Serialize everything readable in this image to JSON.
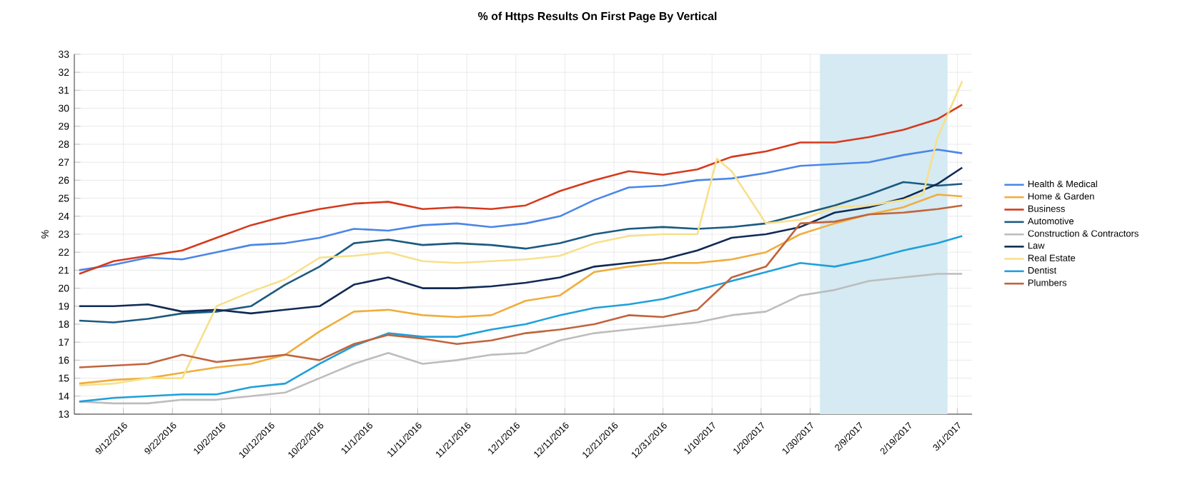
{
  "chart_data": {
    "type": "line",
    "title": "% of Https Results On First Page By Vertical",
    "ylabel": "%",
    "x": [
      "2016-09-03",
      "2016-09-10",
      "2016-09-17",
      "2016-09-24",
      "2016-10-01",
      "2016-10-08",
      "2016-10-15",
      "2016-10-22",
      "2016-10-29",
      "2016-11-05",
      "2016-11-12",
      "2016-11-19",
      "2016-11-26",
      "2016-12-03",
      "2016-12-10",
      "2016-12-17",
      "2016-12-24",
      "2016-12-31",
      "2017-01-07",
      "2017-01-14",
      "2017-01-21",
      "2017-01-28",
      "2017-02-04",
      "2017-02-11",
      "2017-02-18",
      "2017-02-25",
      "2017-03-02"
    ],
    "series": [
      {
        "name": "Health & Medical",
        "color": "#4a86e8",
        "values": [
          21.0,
          21.3,
          21.7,
          21.6,
          22.0,
          22.4,
          22.5,
          22.8,
          23.3,
          23.2,
          23.5,
          23.6,
          23.4,
          23.6,
          24.0,
          24.9,
          25.6,
          25.7,
          26.0,
          26.1,
          26.4,
          26.8,
          26.9,
          27.0,
          27.4,
          27.7,
          27.5
        ]
      },
      {
        "name": "Home & Garden",
        "color": "#f0ad3c",
        "values": [
          14.7,
          14.9,
          15.0,
          15.3,
          15.6,
          15.8,
          16.3,
          17.6,
          18.7,
          18.8,
          18.5,
          18.4,
          18.5,
          19.3,
          19.6,
          20.9,
          21.2,
          21.4,
          21.4,
          21.6,
          22.0,
          23.0,
          23.6,
          24.1,
          24.5,
          25.2,
          25.1
        ]
      },
      {
        "name": "Business",
        "color": "#d63a1c",
        "values": [
          20.8,
          21.5,
          21.8,
          22.1,
          22.8,
          23.5,
          24.0,
          24.4,
          24.7,
          24.8,
          24.4,
          24.5,
          24.4,
          24.6,
          25.4,
          26.0,
          26.5,
          26.3,
          26.6,
          27.3,
          27.6,
          28.1,
          28.1,
          28.4,
          28.8,
          29.4,
          30.2
        ]
      },
      {
        "name": "Automotive",
        "color": "#1c5a80",
        "values": [
          18.2,
          18.1,
          18.3,
          18.6,
          18.7,
          19.0,
          20.2,
          21.2,
          22.5,
          22.7,
          22.4,
          22.5,
          22.4,
          22.2,
          22.5,
          23.0,
          23.3,
          23.4,
          23.3,
          23.4,
          23.6,
          24.1,
          24.6,
          25.2,
          25.9,
          25.7,
          25.8
        ]
      },
      {
        "name": "Construction & Contractors",
        "color": "#bdbdbd",
        "values": [
          13.7,
          13.6,
          13.6,
          13.8,
          13.8,
          14.0,
          14.2,
          15.0,
          15.8,
          16.4,
          15.8,
          16.0,
          16.3,
          16.4,
          17.1,
          17.5,
          17.7,
          17.9,
          18.1,
          18.5,
          18.7,
          19.6,
          19.9,
          20.4,
          20.6,
          20.8,
          20.8
        ]
      },
      {
        "name": "Law",
        "color": "#102a55",
        "values": [
          19.0,
          19.0,
          19.1,
          18.7,
          18.8,
          18.6,
          18.8,
          19.0,
          20.2,
          20.6,
          20.0,
          20.0,
          20.1,
          20.3,
          20.6,
          21.2,
          21.4,
          21.6,
          22.1,
          22.8,
          23.0,
          23.4,
          24.2,
          24.5,
          25.0,
          25.8,
          26.7
        ]
      },
      {
        "name": "Real Estate",
        "color": "#f7e08a",
        "x": [
          "2016-09-03",
          "2016-09-10",
          "2016-09-17",
          "2016-09-24",
          "2016-10-01",
          "2016-10-08",
          "2016-10-15",
          "2016-10-22",
          "2016-10-29",
          "2016-11-05",
          "2016-11-12",
          "2016-11-19",
          "2016-11-26",
          "2016-12-03",
          "2016-12-10",
          "2016-12-17",
          "2016-12-24",
          "2016-12-31",
          "2017-01-07",
          "2017-01-11",
          "2017-01-14",
          "2017-01-21",
          "2017-01-28",
          "2017-02-04",
          "2017-02-11",
          "2017-02-18",
          "2017-02-22",
          "2017-02-25",
          "2017-03-02"
        ],
        "values": [
          14.6,
          14.7,
          15.0,
          15.0,
          19.0,
          19.8,
          20.5,
          21.7,
          21.8,
          22.0,
          21.5,
          21.4,
          21.5,
          21.6,
          21.8,
          22.5,
          22.9,
          23.0,
          23.0,
          27.2,
          26.5,
          23.6,
          23.8,
          24.5,
          24.6,
          24.9,
          25.2,
          28.4,
          31.5
        ]
      },
      {
        "name": "Dentist",
        "color": "#1fa0dc",
        "values": [
          13.7,
          13.9,
          14.0,
          14.1,
          14.1,
          14.5,
          14.7,
          15.8,
          16.8,
          17.5,
          17.3,
          17.3,
          17.7,
          18.0,
          18.5,
          18.9,
          19.1,
          19.4,
          19.9,
          20.4,
          20.9,
          21.4,
          21.2,
          21.6,
          22.1,
          22.5,
          22.9
        ]
      },
      {
        "name": "Plumbers",
        "color": "#c0643c",
        "values": [
          15.6,
          15.7,
          15.8,
          16.3,
          15.9,
          16.1,
          16.3,
          16.0,
          16.9,
          17.4,
          17.2,
          16.9,
          17.1,
          17.5,
          17.7,
          18.0,
          18.5,
          18.4,
          18.8,
          20.6,
          21.2,
          23.6,
          23.7,
          24.1,
          24.2,
          24.4,
          24.6
        ]
      }
    ],
    "xlim": [
      "2016-09-02",
      "2017-03-04"
    ],
    "xticks": [
      {
        "value": "2016-09-12",
        "label": "9/12/2016"
      },
      {
        "value": "2016-09-22",
        "label": "9/22/2016"
      },
      {
        "value": "2016-10-02",
        "label": "10/2/2016"
      },
      {
        "value": "2016-10-12",
        "label": "10/12/2016"
      },
      {
        "value": "2016-10-22",
        "label": "10/22/2016"
      },
      {
        "value": "2016-11-01",
        "label": "11/1/2016"
      },
      {
        "value": "2016-11-11",
        "label": "11/11/2016"
      },
      {
        "value": "2016-11-21",
        "label": "11/21/2016"
      },
      {
        "value": "2016-12-01",
        "label": "12/1/2016"
      },
      {
        "value": "2016-12-11",
        "label": "12/11/2016"
      },
      {
        "value": "2016-12-21",
        "label": "12/21/2016"
      },
      {
        "value": "2016-12-31",
        "label": "12/31/2016"
      },
      {
        "value": "2017-01-10",
        "label": "1/10/2017"
      },
      {
        "value": "2017-01-20",
        "label": "1/20/2017"
      },
      {
        "value": "2017-01-30",
        "label": "1/30/2017"
      },
      {
        "value": "2017-02-09",
        "label": "2/9/2017"
      },
      {
        "value": "2017-02-19",
        "label": "2/19/2017"
      },
      {
        "value": "2017-03-01",
        "label": "3/1/2017"
      }
    ],
    "ylim": [
      13,
      33
    ],
    "yticks": [
      13,
      14,
      15,
      16,
      17,
      18,
      19,
      20,
      21,
      22,
      23,
      24,
      25,
      26,
      27,
      28,
      29,
      30,
      31,
      32,
      33
    ],
    "bands": [
      {
        "axis": "x",
        "from": "2017-02-01",
        "to": "2017-02-27",
        "color": "#d5eaf2"
      }
    ],
    "grid": true,
    "legend": "right",
    "marker": "none",
    "line_style": "solid"
  }
}
